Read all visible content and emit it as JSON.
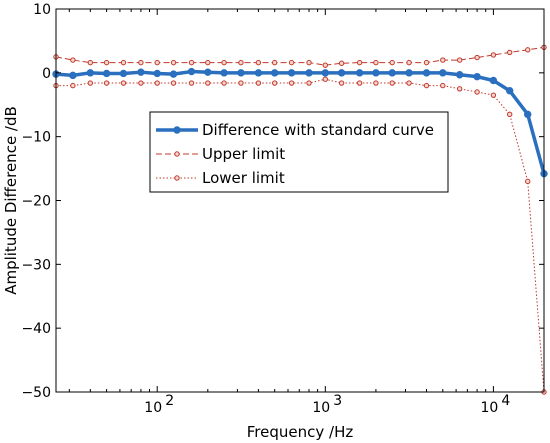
{
  "chart_data": {
    "type": "line",
    "xscale": "log",
    "xlim": [
      25,
      20000
    ],
    "ylim": [
      -50,
      10
    ],
    "xlabel": "Frequency /Hz",
    "ylabel": "Amplitude Difference /dB",
    "y_ticks": [
      10,
      0,
      -10,
      -20,
      -30,
      -40,
      -50
    ],
    "y_tick_labels": [
      "10",
      "0",
      "−10",
      "−20",
      "−30",
      "−40",
      "−50"
    ],
    "x_ticks": [
      100,
      1000,
      10000
    ],
    "x_tick_labels": [
      {
        "base": "10",
        "exp": "2"
      },
      {
        "base": "10",
        "exp": "3"
      },
      {
        "base": "10",
        "exp": "4"
      }
    ],
    "legend_placement": "center-left",
    "x": [
      25,
      31.5,
      40,
      50,
      63,
      80,
      100,
      125,
      160,
      200,
      250,
      315,
      400,
      500,
      630,
      800,
      1000,
      1250,
      1600,
      2000,
      2500,
      3150,
      4000,
      5000,
      6300,
      8000,
      10000,
      12500,
      16000,
      20000
    ],
    "series": [
      {
        "name": "Difference with standard curve",
        "color": "#2b6fbf",
        "style": "solid-thick",
        "values": [
          -0.2,
          -0.4,
          0.0,
          -0.1,
          -0.1,
          0.1,
          -0.1,
          -0.2,
          0.2,
          0.1,
          0.0,
          0.0,
          0.0,
          0.0,
          0.0,
          0.0,
          0.0,
          0.0,
          0.0,
          0.0,
          0.0,
          0.0,
          0.0,
          0.0,
          -0.3,
          -0.6,
          -1.2,
          -2.8,
          -6.5,
          -15.8
        ]
      },
      {
        "name": "Upper limit",
        "color": "#c0392b",
        "style": "dashed",
        "values": [
          2.5,
          2.0,
          1.6,
          1.6,
          1.6,
          1.6,
          1.6,
          1.6,
          1.6,
          1.6,
          1.6,
          1.6,
          1.6,
          1.6,
          1.6,
          1.6,
          1.2,
          1.5,
          1.6,
          1.6,
          1.6,
          1.6,
          1.6,
          2.0,
          2.0,
          2.4,
          2.8,
          3.2,
          3.6,
          4.0
        ]
      },
      {
        "name": "Lower limit",
        "color": "#c0392b",
        "style": "dotted",
        "values": [
          -2.0,
          -2.0,
          -1.6,
          -1.6,
          -1.6,
          -1.6,
          -1.6,
          -1.6,
          -1.6,
          -1.6,
          -1.6,
          -1.6,
          -1.6,
          -1.6,
          -1.6,
          -1.6,
          -1.0,
          -1.6,
          -1.6,
          -1.6,
          -1.6,
          -1.6,
          -2.0,
          -2.0,
          -2.5,
          -3.0,
          -3.5,
          -6.5,
          -17.0,
          -50.0
        ]
      }
    ]
  }
}
